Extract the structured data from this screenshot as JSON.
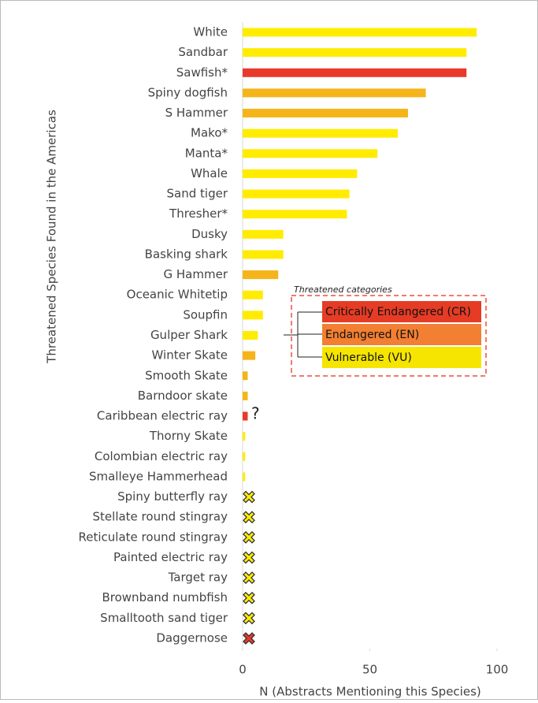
{
  "chart_data": {
    "type": "bar",
    "orientation": "horizontal",
    "xlabel": "N (Abstracts Mentioning this Species)",
    "ylabel": "Threatened Species Found in the Americas",
    "categories": [
      "White",
      "Sandbar",
      "Sawfish*",
      "Spiny dogfish",
      "S Hammer",
      "Mako*",
      "Manta*",
      "Whale",
      "Sand tiger",
      "Thresher*",
      "Dusky",
      "Basking shark",
      "G Hammer",
      "Oceanic Whitetip",
      "Soupfin",
      "Gulper Shark",
      "Winter Skate",
      "Smooth Skate",
      "Barndoor skate",
      "Caribbean electric ray",
      "Thorny Skate",
      "Colombian electric ray",
      "Smalleye Hammerhead",
      "Spiny butterfly ray",
      "Stellate round stingray",
      "Reticulate round stingray",
      "Painted electric ray",
      "Target ray",
      "Brownband numbfish",
      "Smalltooth sand tiger",
      "Daggernose"
    ],
    "values": [
      92,
      88,
      88,
      72,
      65,
      61,
      53,
      45,
      42,
      41,
      16,
      16,
      14,
      8,
      8,
      6,
      5,
      2,
      2,
      2,
      1,
      1,
      1,
      0,
      0,
      0,
      0,
      0,
      0,
      0,
      0
    ],
    "colors": [
      "#ffec00",
      "#ffec00",
      "#e8392a",
      "#f5b41a",
      "#f5b41a",
      "#ffec00",
      "#ffec00",
      "#ffec00",
      "#ffec00",
      "#ffec00",
      "#ffec00",
      "#ffec00",
      "#f5b41a",
      "#ffec00",
      "#ffec00",
      "#ffec00",
      "#f5b41a",
      "#f5b41a",
      "#f5b41a",
      "#e8392a",
      "#ffec00",
      "#ffec00",
      "#ffec00",
      "#ffec00",
      "#ffec00",
      "#ffec00",
      "#ffec00",
      "#ffec00",
      "#ffec00",
      "#ffec00",
      "#e8392a"
    ],
    "xlim": [
      0,
      100
    ],
    "xticks": [
      0,
      50,
      100
    ],
    "annotation": "?",
    "legend": {
      "title": "Threatened categories",
      "items": [
        {
          "name": "Critically Endangered (CR)",
          "color": "#e63c25"
        },
        {
          "name": "Endangered (EN)",
          "color": "#f27f32"
        },
        {
          "name": "Vulnerable (VU)",
          "color": "#f5e500"
        }
      ]
    }
  }
}
